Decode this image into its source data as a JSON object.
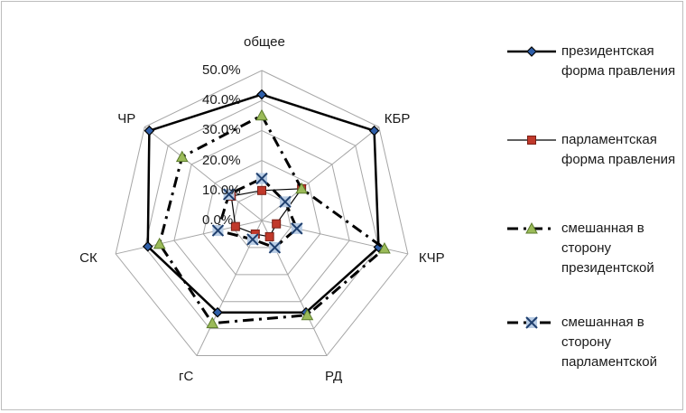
{
  "chart_data": {
    "type": "radar",
    "categories": [
      "общее",
      "КБР",
      "КЧР",
      "РД",
      "гС",
      "СК",
      "ЧР"
    ],
    "rlim": [
      0,
      50
    ],
    "tick_labels": [
      "0.0%",
      "10.0%",
      "20.0%",
      "30.0%",
      "40.0%",
      "50.0%"
    ],
    "grid": true,
    "legend_position": "right",
    "series": [
      {
        "name": "президентская форма правления",
        "values": [
          42,
          48,
          40,
          34,
          34,
          39,
          48
        ],
        "color": "#000000",
        "marker": "diamond",
        "marker_fill": "#2e5ea8",
        "dash": "solid",
        "width": 2.5
      },
      {
        "name": "парламентская форма правления",
        "values": [
          10,
          17,
          5,
          6,
          5,
          9,
          13
        ],
        "color": "#000000",
        "marker": "square",
        "marker_fill": "#c0392b",
        "dash": "solid",
        "width": 1.2
      },
      {
        "name": "смешанная в сторону президентской",
        "values": [
          35,
          17,
          42,
          35,
          38,
          35,
          34
        ],
        "color": "#000000",
        "marker": "triangle",
        "marker_fill": "#9bbb59",
        "dash": "dashdot",
        "width": 3
      },
      {
        "name": "смешанная в сторону парламентской",
        "values": [
          14,
          10,
          12,
          10,
          7,
          15,
          14
        ],
        "color": "#000000",
        "marker": "x",
        "marker_fill": "#b8cce4",
        "dash": "dash",
        "width": 3
      }
    ]
  }
}
